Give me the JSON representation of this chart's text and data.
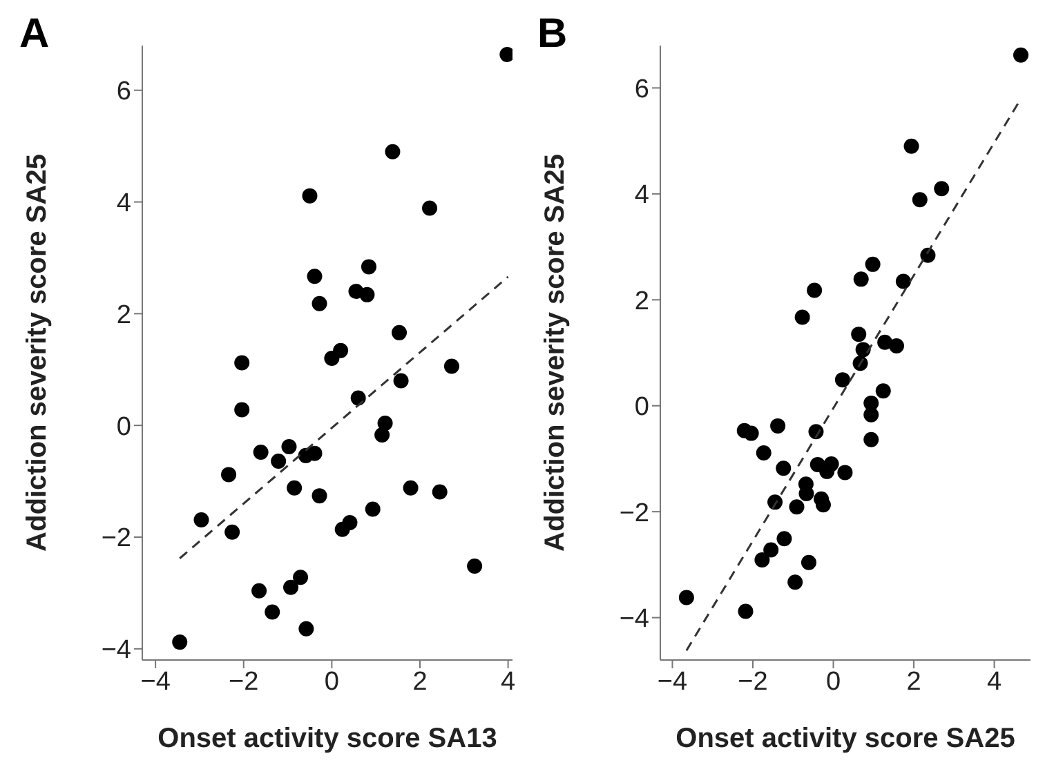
{
  "chart_data": [
    {
      "type": "scatter",
      "title": "A",
      "xlabel": "Onset activity score SA13",
      "ylabel": "Addiction severity score SA25",
      "xlim": [
        -4.3,
        4.1
      ],
      "ylim": [
        -4.2,
        6.8
      ],
      "xticks": [
        -4,
        -2,
        0,
        2,
        4
      ],
      "yticks": [
        -4,
        -2,
        0,
        2,
        4,
        6
      ],
      "marker": "circle",
      "series": [
        {
          "color": "#000000",
          "x": [
            3.98,
            1.38,
            -0.5,
            2.22,
            0.84,
            -0.39,
            0.55,
            0.8,
            -0.28,
            1.53,
            0.2,
            0.0,
            -2.04,
            2.72,
            1.57,
            0.6,
            -2.04,
            1.21,
            1.14,
            -1.61,
            -0.97,
            -1.21,
            -0.59,
            -0.39,
            -2.34,
            -0.85,
            -0.28,
            1.79,
            2.45,
            -2.96,
            0.93,
            -2.26,
            0.24,
            0.41,
            3.24,
            -1.65,
            -0.71,
            -0.93,
            -1.35,
            -0.58,
            -3.45
          ],
          "values": [
            6.64,
            4.9,
            4.11,
            3.89,
            2.84,
            2.67,
            2.4,
            2.34,
            2.18,
            1.66,
            1.34,
            1.2,
            1.12,
            1.06,
            0.8,
            0.49,
            0.28,
            0.04,
            -0.17,
            -0.48,
            -0.38,
            -0.64,
            -0.54,
            -0.5,
            -0.88,
            -1.12,
            -1.26,
            -1.12,
            -1.19,
            -1.69,
            -1.5,
            -1.91,
            -1.86,
            -1.74,
            -2.52,
            -2.96,
            -2.72,
            -2.9,
            -3.34,
            -3.64,
            -3.88
          ]
        },
        {
          "type": "line",
          "color": "#333333",
          "marker": "none",
          "line_style": "dashed",
          "x": [
            -3.45,
            4.0
          ],
          "values": [
            -2.38,
            2.66
          ]
        }
      ]
    },
    {
      "type": "scatter",
      "title": "B",
      "xlabel": "Onset activity score SA25",
      "ylabel": "Addiction severity score SA25",
      "xlim": [
        -4.3,
        4.9
      ],
      "ylim": [
        -4.8,
        6.8
      ],
      "xticks": [
        -4,
        -2,
        0,
        2,
        4
      ],
      "yticks": [
        -4,
        -2,
        0,
        2,
        4,
        6
      ],
      "marker": "circle",
      "series": [
        {
          "color": "#000000",
          "x": [
            4.66,
            1.94,
            2.69,
            2.15,
            2.35,
            0.98,
            0.69,
            1.74,
            -0.47,
            -0.77,
            0.63,
            0.74,
            1.28,
            1.57,
            0.67,
            0.23,
            1.24,
            0.94,
            0.94,
            0.94,
            -2.21,
            -2.04,
            -1.38,
            -0.43,
            -1.73,
            -1.24,
            -0.39,
            -0.05,
            -0.16,
            0.29,
            -0.68,
            -0.67,
            -1.45,
            -0.3,
            -0.25,
            -0.91,
            -1.22,
            -1.55,
            -1.77,
            -0.61,
            -0.95,
            -3.65,
            -2.18
          ],
          "values": [
            6.62,
            4.9,
            4.1,
            3.89,
            2.84,
            2.67,
            2.39,
            2.35,
            2.18,
            1.67,
            1.35,
            1.06,
            1.2,
            1.13,
            0.8,
            0.49,
            0.28,
            0.05,
            -0.17,
            -0.64,
            -0.47,
            -0.52,
            -0.38,
            -0.49,
            -0.89,
            -1.18,
            -1.11,
            -1.1,
            -1.24,
            -1.26,
            -1.48,
            -1.66,
            -1.82,
            -1.76,
            -1.87,
            -1.91,
            -2.51,
            -2.72,
            -2.91,
            -2.96,
            -3.33,
            -3.62,
            -3.88
          ]
        },
        {
          "type": "line",
          "color": "#333333",
          "marker": "none",
          "line_style": "dashed",
          "x": [
            -3.65,
            4.64
          ],
          "values": [
            -4.62,
            5.77
          ]
        }
      ]
    }
  ]
}
